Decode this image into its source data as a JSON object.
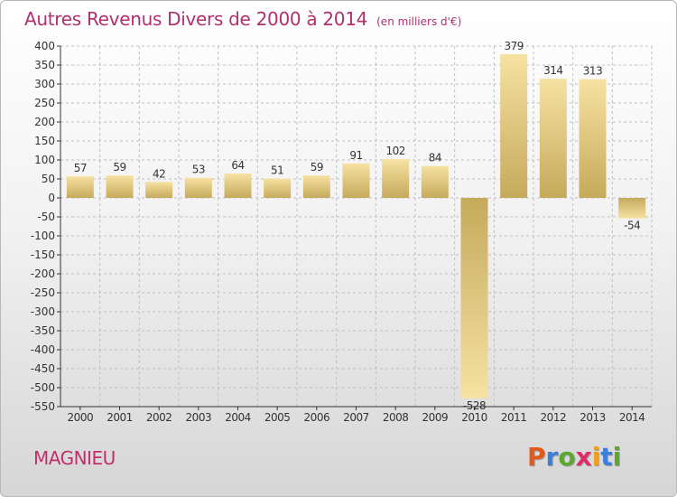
{
  "title": "Autres Revenus Divers de 2000 à 2014",
  "subtitle": "(en milliers d'€)",
  "commune": "MAGNIEU",
  "brand": {
    "letters": [
      "P",
      "r",
      "o",
      "x",
      "i",
      "t",
      "i"
    ],
    "colors": [
      "#e05a1e",
      "#3b7fd8",
      "#5aa832",
      "#e02a6a",
      "#f0a020",
      "#3b7fd8",
      "#5aa832"
    ]
  },
  "colors": {
    "title": "#b03070",
    "bar_light": "#f5dd9a",
    "bar_dark": "#c8ad62",
    "axis": "#333333",
    "grid": "#bfbfbf"
  },
  "chart_data": {
    "type": "bar",
    "categories": [
      "2000",
      "2001",
      "2002",
      "2003",
      "2004",
      "2005",
      "2006",
      "2007",
      "2008",
      "2009",
      "2010",
      "2011",
      "2012",
      "2013",
      "2014"
    ],
    "values": [
      57,
      59,
      42,
      53,
      64,
      51,
      59,
      91,
      102,
      84,
      -528,
      379,
      314,
      313,
      -54
    ],
    "value_labels": [
      "57",
      "59",
      "42",
      "53",
      "64",
      "51",
      "59",
      "91",
      "102",
      "84",
      "-528",
      "379",
      "314",
      "313",
      "-54"
    ],
    "ylim": [
      -550,
      400
    ],
    "yticks": [
      400,
      350,
      300,
      250,
      200,
      150,
      100,
      50,
      0,
      -50,
      -100,
      -150,
      -200,
      -250,
      -300,
      -350,
      -400,
      -450,
      -500,
      -550
    ],
    "ytick_labels": [
      "400",
      "350",
      "300",
      "250",
      "200",
      "150",
      "100",
      "50",
      "0",
      "-50",
      "-100",
      "-150",
      "-200",
      "-250",
      "-300",
      "-350",
      "-400",
      "-450",
      "-500",
      "-550"
    ],
    "grid": true
  }
}
